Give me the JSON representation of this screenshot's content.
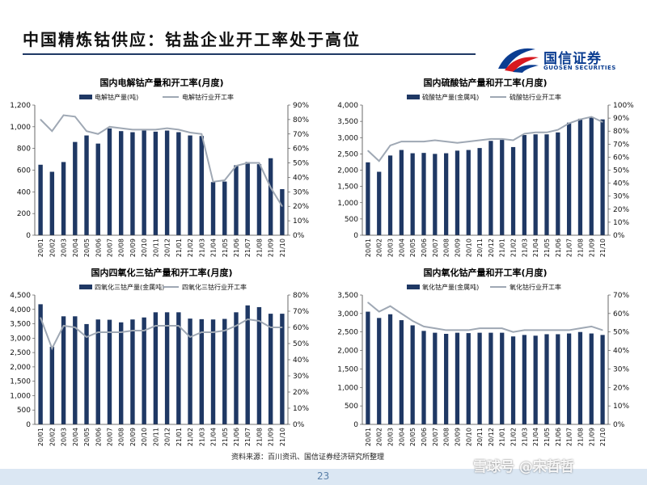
{
  "page": {
    "title": "中国精炼钴供应：钴盐企业开工率处于高位",
    "page_number": "23",
    "source": "资料来源：百川资讯、国信证券经济研究所整理",
    "watermark": "雪球号 @宋哲哲"
  },
  "logo": {
    "cn": "国信证券",
    "en": "GUOSEN SECURITIES",
    "colors": {
      "blue": "#0b3d91",
      "red": "#d71920"
    }
  },
  "colors": {
    "bar": "#1f3864",
    "line": "#9fa8b4",
    "rule": "#1f3864"
  },
  "chart_data": [
    {
      "type": "bar+line",
      "title": "国内电解钴产量和开工率(月度)",
      "x": [
        "20/01",
        "20/02",
        "20/03",
        "20/04",
        "20/05",
        "20/06",
        "20/07",
        "20/08",
        "20/09",
        "20/10",
        "20/11",
        "20/12",
        "21/01",
        "21/02",
        "21/03",
        "21/04",
        "21/05",
        "21/06",
        "21/07",
        "21/08",
        "21/09",
        "21/10"
      ],
      "series": [
        {
          "name": "电解钴产量(吨)",
          "kind": "bar",
          "axis": "left",
          "values": [
            650,
            585,
            675,
            860,
            920,
            845,
            985,
            960,
            950,
            965,
            955,
            965,
            950,
            920,
            915,
            490,
            495,
            645,
            675,
            655,
            710,
            425
          ]
        },
        {
          "name": "电解钴行业开工率",
          "kind": "line",
          "axis": "right",
          "values": [
            80,
            72,
            83,
            82,
            72,
            70,
            75,
            74,
            73,
            73,
            73,
            74,
            73,
            71,
            70,
            37,
            38,
            48,
            50,
            50,
            33,
            20
          ]
        }
      ],
      "yleft": {
        "min": 0,
        "max": 1200,
        "step": 200,
        "format": "comma"
      },
      "yright": {
        "min": 0,
        "max": 90,
        "step": 10,
        "format": "percent"
      }
    },
    {
      "type": "bar+line",
      "title": "国内硫酸钴产量和开工率(月度)",
      "x": [
        "20/01",
        "20/02",
        "20/03",
        "20/04",
        "20/05",
        "20/06",
        "20/07",
        "20/08",
        "20/09",
        "20/10",
        "20/11",
        "20/12",
        "21/01",
        "21/02",
        "21/03",
        "21/04",
        "21/05",
        "21/06",
        "21/07",
        "21/08",
        "21/09",
        "21/10"
      ],
      "series": [
        {
          "name": "硫酸钴产量(金属吨)",
          "kind": "bar",
          "axis": "left",
          "values": [
            2240,
            1950,
            2450,
            2620,
            2520,
            2530,
            2500,
            2520,
            2600,
            2620,
            2680,
            2900,
            2930,
            2710,
            3080,
            3100,
            3100,
            3160,
            3460,
            3580,
            3640,
            3560
          ]
        },
        {
          "name": "硫酸钴行业开工率",
          "kind": "line",
          "axis": "right",
          "values": [
            65,
            57,
            69,
            72,
            72,
            72,
            73,
            72,
            71,
            72,
            73,
            74,
            74,
            73,
            78,
            79,
            79,
            81,
            86,
            89,
            91,
            87
          ]
        }
      ],
      "yleft": {
        "min": 0,
        "max": 4000,
        "step": 500,
        "format": "comma"
      },
      "yright": {
        "min": 0,
        "max": 100,
        "step": 10,
        "format": "percent"
      }
    },
    {
      "type": "bar+line",
      "title": "国内四氧化三钴产量和开工率(月度)",
      "x": [
        "20/01",
        "20/02",
        "20/03",
        "20/04",
        "20/05",
        "20/06",
        "20/07",
        "20/08",
        "20/09",
        "20/10",
        "20/11",
        "20/12",
        "21/01",
        "21/02",
        "21/03",
        "21/04",
        "21/05",
        "21/06",
        "21/07",
        "21/08",
        "21/09",
        "21/10"
      ],
      "series": [
        {
          "name": "四氧化三钴产量(金属吨)",
          "kind": "bar",
          "axis": "left",
          "values": [
            4180,
            2700,
            3760,
            3760,
            3490,
            3650,
            3640,
            3550,
            3650,
            3720,
            3900,
            3900,
            3900,
            3680,
            3660,
            3650,
            3670,
            3900,
            4140,
            4080,
            3850,
            3850
          ]
        },
        {
          "name": "四氧化三钴行业开工率",
          "kind": "line",
          "axis": "right",
          "values": [
            66,
            47,
            61,
            60,
            54,
            57,
            57,
            57,
            58,
            58,
            61,
            61,
            61,
            54,
            57,
            57,
            58,
            61,
            65,
            64,
            60,
            60
          ]
        }
      ],
      "yleft": {
        "min": 0,
        "max": 4500,
        "step": 500,
        "format": "comma"
      },
      "yright": {
        "min": 0,
        "max": 80,
        "step": 10,
        "format": "percent"
      }
    },
    {
      "type": "bar+line",
      "title": "国内氧化钴产量和开工率(月度)",
      "x": [
        "20/01",
        "20/02",
        "20/03",
        "20/04",
        "20/05",
        "20/06",
        "20/07",
        "20/08",
        "20/09",
        "20/10",
        "20/11",
        "20/12",
        "21/01",
        "21/02",
        "21/03",
        "21/04",
        "21/05",
        "21/06",
        "21/07",
        "21/08",
        "21/09",
        "21/10"
      ],
      "series": [
        {
          "name": "氧化钴产量(金属吨)",
          "kind": "bar",
          "axis": "left",
          "values": [
            3050,
            2880,
            2980,
            2820,
            2680,
            2530,
            2480,
            2450,
            2480,
            2470,
            2480,
            2480,
            2480,
            2380,
            2420,
            2400,
            2440,
            2440,
            2460,
            2500,
            2460,
            2420
          ]
        },
        {
          "name": "氧化钴行业开工率",
          "kind": "line",
          "axis": "right",
          "values": [
            66,
            61,
            64,
            60,
            56,
            53,
            52,
            51,
            51,
            51,
            52,
            52,
            52,
            50,
            51,
            51,
            51,
            51,
            51,
            52,
            53,
            51
          ]
        }
      ],
      "yleft": {
        "min": 0,
        "max": 3500,
        "step": 500,
        "format": "comma"
      },
      "yright": {
        "min": 0,
        "max": 70,
        "step": 10,
        "format": "percent"
      }
    }
  ]
}
